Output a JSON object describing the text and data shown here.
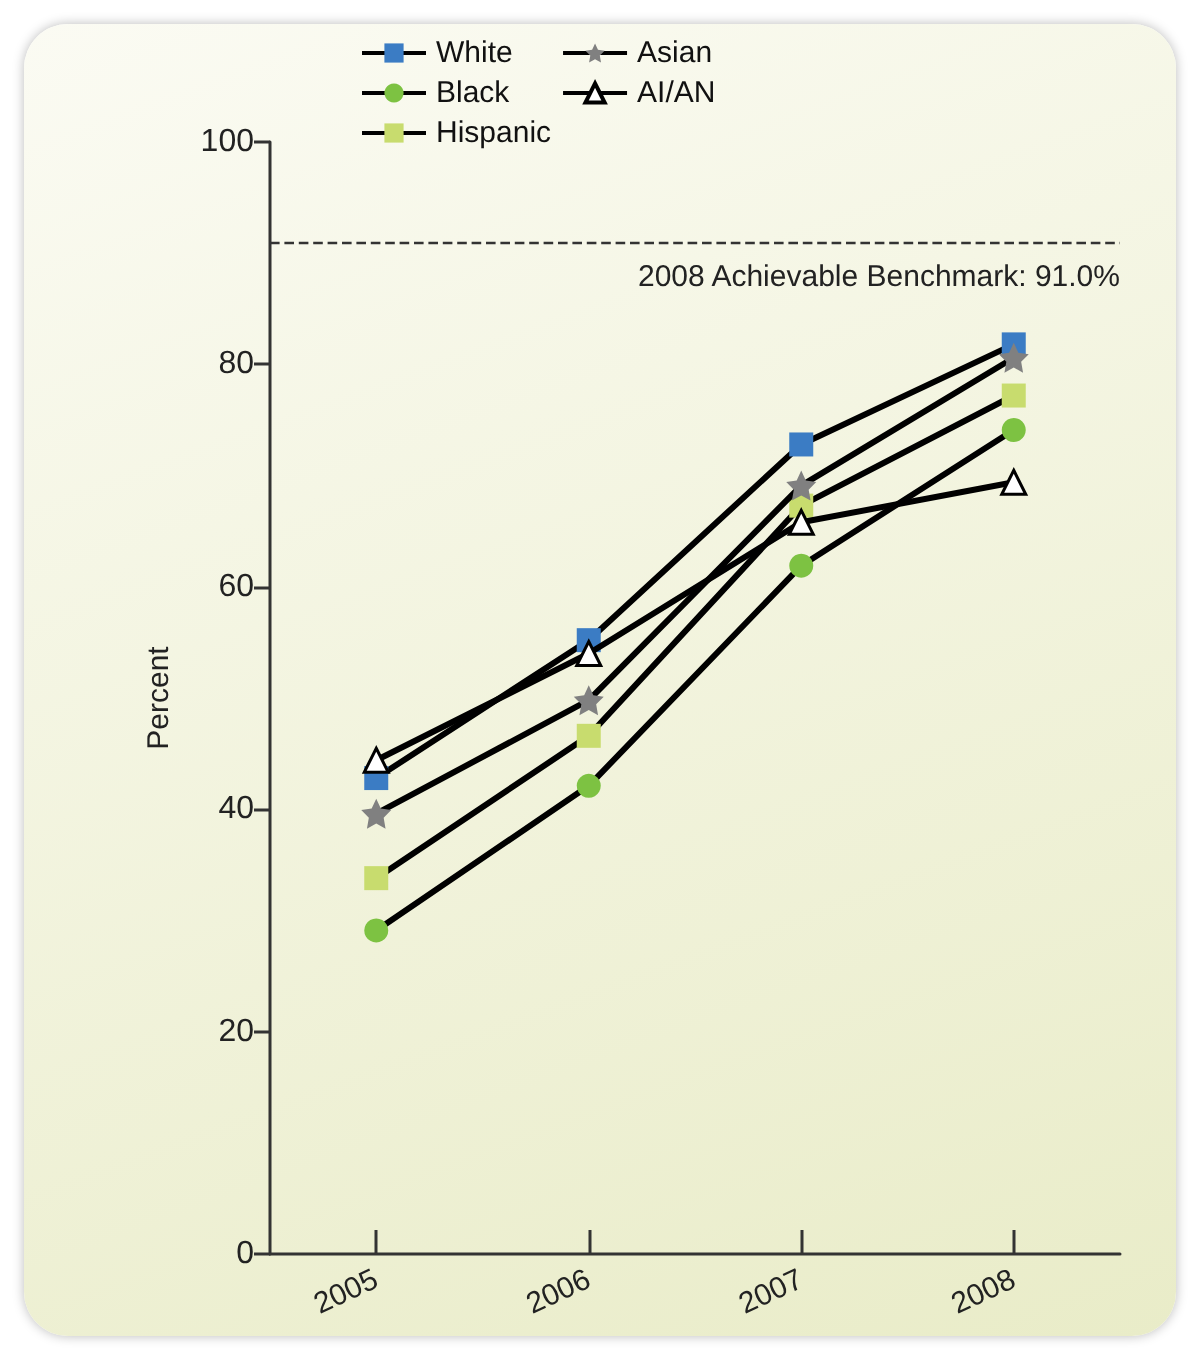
{
  "chart_data": {
    "type": "line",
    "ylabel": "Percent",
    "categories": [
      "2005",
      "2006",
      "2007",
      "2008"
    ],
    "series": [
      {
        "name": "White",
        "color": "#3b7cc4",
        "marker": "square",
        "values": [
          42.8,
          55.2,
          72.8,
          81.8
        ]
      },
      {
        "name": "Black",
        "color": "#7dc242",
        "marker": "circle",
        "values": [
          29.1,
          42.1,
          61.9,
          74.1
        ]
      },
      {
        "name": "Hispanic",
        "color": "#c8dc6e",
        "marker": "square",
        "values": [
          33.8,
          46.6,
          67.3,
          77.2
        ]
      },
      {
        "name": "Asian",
        "color": "#808080",
        "marker": "star",
        "values": [
          39.6,
          49.8,
          69.1,
          80.6
        ]
      },
      {
        "name": "AI/AN",
        "color": "#ffffff",
        "marker": "triangle",
        "values": [
          44.4,
          54.0,
          65.8,
          69.4
        ]
      }
    ],
    "ylim": [
      0,
      100
    ],
    "yticks": [
      0,
      20,
      40,
      60,
      80,
      100
    ],
    "grid": false,
    "legend": "top",
    "line_style": "solid",
    "ref_lines": [
      {
        "axis": "y",
        "value": 91.0,
        "label": "2008 Achievable Benchmark: 91.0%",
        "line_style": "dashed"
      }
    ]
  }
}
